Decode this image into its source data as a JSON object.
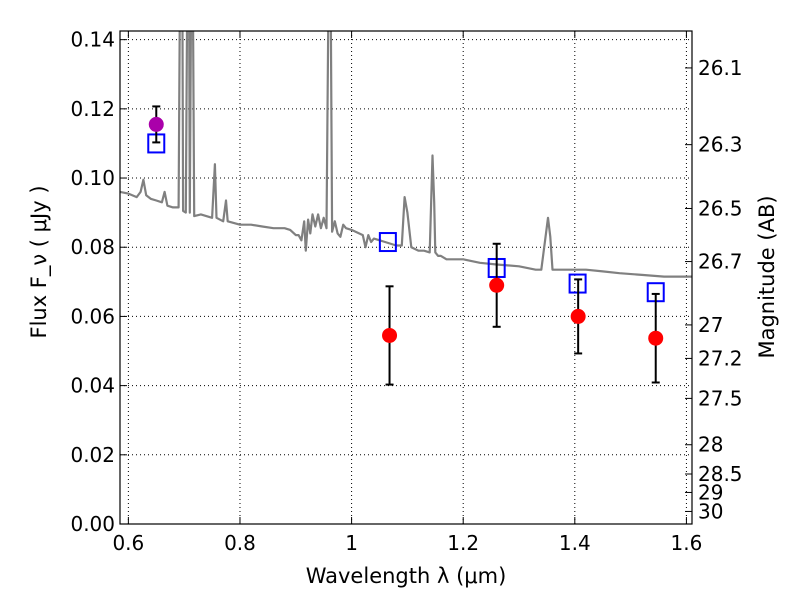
{
  "chart_data": {
    "type": "scatter",
    "xlabel": "Wavelength  λ (μm)",
    "ylabel": "Flux  F_ν  ( μJy )",
    "y2label": "Magnitude (AB)",
    "xlim": [
      0.585,
      1.61
    ],
    "ylim": [
      0.0,
      0.1425
    ],
    "grid": true,
    "x_ticks": [
      0.6,
      0.8,
      1.0,
      1.2,
      1.4,
      1.6
    ],
    "x_tick_labels": [
      "0.6",
      "0.8",
      "1",
      "1.2",
      "1.4",
      "1.6"
    ],
    "y_ticks": [
      0.0,
      0.02,
      0.04,
      0.06,
      0.08,
      0.1,
      0.12,
      0.14
    ],
    "y_tick_labels": [
      "0.00",
      "0.02",
      "0.04",
      "0.06",
      "0.08",
      "0.10",
      "0.12",
      "0.14"
    ],
    "y2_ticks": [
      {
        "label": "26.1",
        "mag": 26.1
      },
      {
        "label": "26.3",
        "mag": 26.3
      },
      {
        "label": "26.5",
        "mag": 26.5
      },
      {
        "label": "26.7",
        "mag": 26.7
      },
      {
        "label": "27",
        "mag": 27.0
      },
      {
        "label": "27.2",
        "mag": 27.2
      },
      {
        "label": "27.5",
        "mag": 27.5
      },
      {
        "label": "28",
        "mag": 28.0
      },
      {
        "label": "28.5",
        "mag": 28.5
      },
      {
        "label": "29",
        "mag": 29.0
      },
      {
        "label": "30",
        "mag": 30.0
      }
    ],
    "series": [
      {
        "kind": "spectrum-line",
        "color": "#808080",
        "points": [
          [
            0.585,
            0.096
          ],
          [
            0.6,
            0.0955
          ],
          [
            0.615,
            0.0945
          ],
          [
            0.622,
            0.096
          ],
          [
            0.627,
            0.0995
          ],
          [
            0.632,
            0.095
          ],
          [
            0.64,
            0.094
          ],
          [
            0.65,
            0.0935
          ],
          [
            0.66,
            0.093
          ],
          [
            0.665,
            0.096
          ],
          [
            0.67,
            0.092
          ],
          [
            0.68,
            0.0915
          ],
          [
            0.69,
            0.0915
          ],
          [
            0.692,
            0.143
          ],
          [
            0.697,
            0.143
          ],
          [
            0.698,
            0.0905
          ],
          [
            0.703,
            0.09
          ],
          [
            0.705,
            0.143
          ],
          [
            0.709,
            0.143
          ],
          [
            0.71,
            0.09
          ],
          [
            0.712,
            0.143
          ],
          [
            0.716,
            0.143
          ],
          [
            0.718,
            0.089
          ],
          [
            0.73,
            0.0895
          ],
          [
            0.75,
            0.0885
          ],
          [
            0.755,
            0.104
          ],
          [
            0.758,
            0.0885
          ],
          [
            0.77,
            0.0875
          ],
          [
            0.775,
            0.0935
          ],
          [
            0.778,
            0.0875
          ],
          [
            0.8,
            0.0865
          ],
          [
            0.82,
            0.0865
          ],
          [
            0.84,
            0.086
          ],
          [
            0.86,
            0.0855
          ],
          [
            0.88,
            0.0855
          ],
          [
            0.89,
            0.085
          ],
          [
            0.9,
            0.0835
          ],
          [
            0.905,
            0.0835
          ],
          [
            0.91,
            0.082
          ],
          [
            0.915,
            0.0875
          ],
          [
            0.918,
            0.079
          ],
          [
            0.922,
            0.088
          ],
          [
            0.926,
            0.084
          ],
          [
            0.93,
            0.0895
          ],
          [
            0.935,
            0.086
          ],
          [
            0.94,
            0.0895
          ],
          [
            0.945,
            0.0855
          ],
          [
            0.95,
            0.0885
          ],
          [
            0.955,
            0.0855
          ],
          [
            0.958,
            0.143
          ],
          [
            0.963,
            0.143
          ],
          [
            0.965,
            0.0845
          ],
          [
            0.97,
            0.0875
          ],
          [
            0.975,
            0.084
          ],
          [
            0.98,
            0.083
          ],
          [
            0.985,
            0.0865
          ],
          [
            0.99,
            0.0855
          ],
          [
            1.0,
            0.085
          ],
          [
            1.02,
            0.0835
          ],
          [
            1.025,
            0.08
          ],
          [
            1.03,
            0.0835
          ],
          [
            1.035,
            0.0815
          ],
          [
            1.04,
            0.0825
          ],
          [
            1.06,
            0.0815
          ],
          [
            1.08,
            0.0805
          ],
          [
            1.09,
            0.0805
          ],
          [
            1.095,
            0.0945
          ],
          [
            1.1,
            0.09
          ],
          [
            1.107,
            0.08
          ],
          [
            1.12,
            0.079
          ],
          [
            1.13,
            0.079
          ],
          [
            1.14,
            0.0785
          ],
          [
            1.145,
            0.1065
          ],
          [
            1.148,
            0.093
          ],
          [
            1.15,
            0.0785
          ],
          [
            1.155,
            0.0775
          ],
          [
            1.16,
            0.0775
          ],
          [
            1.17,
            0.0765
          ],
          [
            1.2,
            0.0765
          ],
          [
            1.23,
            0.0755
          ],
          [
            1.26,
            0.075
          ],
          [
            1.3,
            0.0745
          ],
          [
            1.33,
            0.0735
          ],
          [
            1.34,
            0.0735
          ],
          [
            1.352,
            0.0885
          ],
          [
            1.356,
            0.083
          ],
          [
            1.36,
            0.0735
          ],
          [
            1.38,
            0.0735
          ],
          [
            1.42,
            0.0735
          ],
          [
            1.45,
            0.073
          ],
          [
            1.48,
            0.0725
          ],
          [
            1.52,
            0.072
          ],
          [
            1.56,
            0.0715
          ],
          [
            1.61,
            0.0715
          ]
        ]
      },
      {
        "kind": "model-photometry",
        "marker": "open-square",
        "color": "#0000ff",
        "points": [
          [
            0.65,
            0.11
          ],
          [
            1.065,
            0.0815
          ],
          [
            1.26,
            0.074
          ],
          [
            1.405,
            0.0695
          ],
          [
            1.545,
            0.067
          ]
        ]
      },
      {
        "kind": "observed-photometry",
        "marker": "filled-circle",
        "color": "#ff0000",
        "points": [
          {
            "x": 1.068,
            "y": 0.0545,
            "err": 0.0142
          },
          {
            "x": 1.26,
            "y": 0.069,
            "err": 0.012
          },
          {
            "x": 1.406,
            "y": 0.06,
            "err": 0.0107
          },
          {
            "x": 1.545,
            "y": 0.0537,
            "err": 0.0128
          }
        ]
      },
      {
        "kind": "observed-photometry",
        "marker": "filled-circle",
        "color": "#aa00aa",
        "points": [
          {
            "x": 0.65,
            "y": 0.1155,
            "err": 0.0052
          }
        ]
      }
    ]
  }
}
